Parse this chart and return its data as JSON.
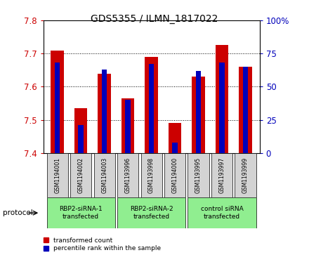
{
  "title": "GDS5355 / ILMN_1817022",
  "samples": [
    "GSM1194001",
    "GSM1194002",
    "GSM1194003",
    "GSM1193996",
    "GSM1193998",
    "GSM1194000",
    "GSM1193995",
    "GSM1193997",
    "GSM1193999"
  ],
  "red_values": [
    7.71,
    7.535,
    7.64,
    7.565,
    7.69,
    7.49,
    7.63,
    7.725,
    7.66
  ],
  "blue_values_pct": [
    68,
    21,
    63,
    40,
    67,
    8,
    62,
    68,
    65
  ],
  "ylim_left": [
    7.4,
    7.8
  ],
  "ylim_right": [
    0,
    100
  ],
  "yticks_left": [
    7.4,
    7.5,
    7.6,
    7.7,
    7.8
  ],
  "yticks_right": [
    0,
    25,
    50,
    75,
    100
  ],
  "red_color": "#CC0000",
  "blue_color": "#0000BB",
  "bar_width": 0.55,
  "blue_bar_width": 0.22,
  "bar_bottom": 7.4,
  "protocol_label": "protocol",
  "legend_red": "transformed count",
  "legend_blue": "percentile rank within the sample",
  "tick_label_color_left": "#CC0000",
  "tick_label_color_right": "#0000BB",
  "group_labels": [
    "RBP2-siRNA-1\ntransfected",
    "RBP2-siRNA-2\ntransfected",
    "control siRNA\ntransfected"
  ],
  "group_ranges": [
    [
      0,
      3
    ],
    [
      3,
      6
    ],
    [
      6,
      9
    ]
  ],
  "group_color": "#90EE90",
  "sample_box_color": "#d3d3d3"
}
